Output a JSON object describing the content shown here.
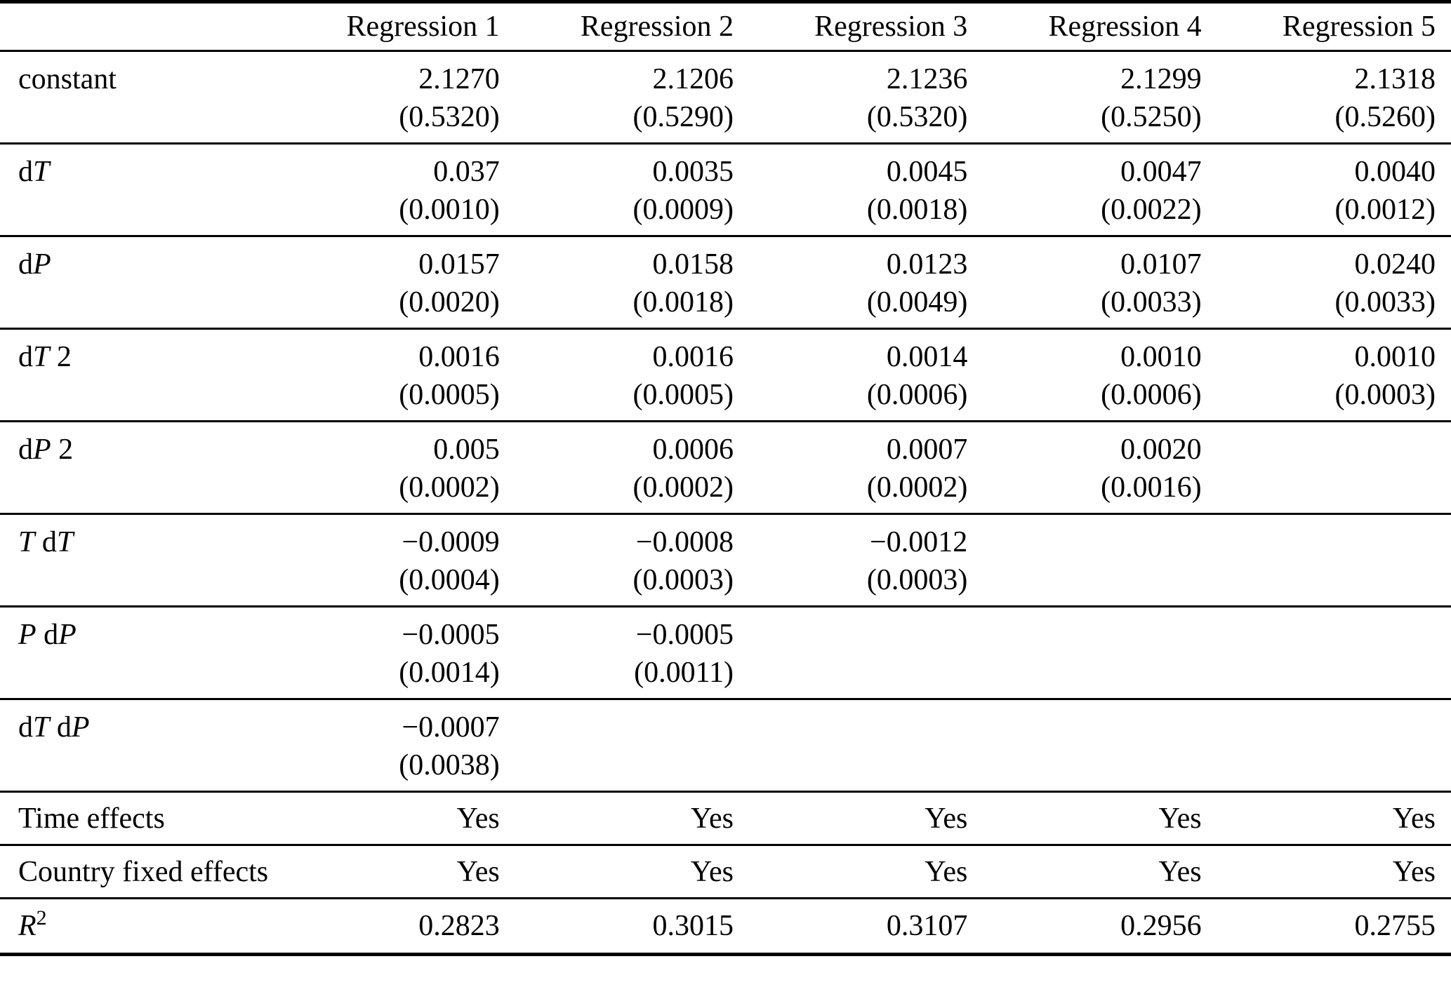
{
  "page": {
    "background_color": "#ffffff",
    "text_color": "#000000",
    "rule_color": "#000000"
  },
  "table": {
    "header": {
      "corner_label": "",
      "columns": [
        "Regression 1",
        "Regression 2",
        "Regression 3",
        "Regression 4",
        "Regression 5"
      ]
    },
    "coefficient_rows": [
      {
        "name": "constant",
        "label_parts": [
          {
            "text": "constant",
            "italic": false
          }
        ],
        "estimates": [
          "2.1270",
          "2.1206",
          "2.1236",
          "2.1299",
          "2.1318"
        ],
        "std_errors": [
          "(0.5320)",
          "(0.5290)",
          "(0.5320)",
          "(0.5250)",
          "(0.5260)"
        ]
      },
      {
        "name": "dT",
        "label_parts": [
          {
            "text": "d",
            "italic": false
          },
          {
            "text": "T",
            "italic": true
          }
        ],
        "estimates": [
          "0.037",
          "0.0035",
          "0.0045",
          "0.0047",
          "0.0040"
        ],
        "std_errors": [
          "(0.0010)",
          "(0.0009)",
          "(0.0018)",
          "(0.0022)",
          "(0.0012)"
        ]
      },
      {
        "name": "dP",
        "label_parts": [
          {
            "text": "d",
            "italic": false
          },
          {
            "text": "P",
            "italic": true
          }
        ],
        "estimates": [
          "0.0157",
          "0.0158",
          "0.0123",
          "0.0107",
          "0.0240"
        ],
        "std_errors": [
          "(0.0020)",
          "(0.0018)",
          "(0.0049)",
          "(0.0033)",
          "(0.0033)"
        ]
      },
      {
        "name": "dT2",
        "label_parts": [
          {
            "text": "d",
            "italic": false
          },
          {
            "text": "T",
            "italic": true
          },
          {
            "text": " 2",
            "italic": false
          }
        ],
        "estimates": [
          "0.0016",
          "0.0016",
          "0.0014",
          "0.0010",
          "0.0010"
        ],
        "std_errors": [
          "(0.0005)",
          "(0.0005)",
          "(0.0006)",
          "(0.0006)",
          "(0.0003)"
        ]
      },
      {
        "name": "dP2",
        "label_parts": [
          {
            "text": "d",
            "italic": false
          },
          {
            "text": "P",
            "italic": true
          },
          {
            "text": " 2",
            "italic": false
          }
        ],
        "estimates": [
          "0.005",
          "0.0006",
          "0.0007",
          "0.0020",
          ""
        ],
        "std_errors": [
          "(0.0002)",
          "(0.0002)",
          "(0.0002)",
          "(0.0016)",
          ""
        ]
      },
      {
        "name": "TdT",
        "label_parts": [
          {
            "text": "T",
            "italic": true
          },
          {
            "text": " d",
            "italic": false
          },
          {
            "text": "T",
            "italic": true
          }
        ],
        "estimates": [
          "−0.0009",
          "−0.0008",
          "−0.0012",
          "",
          ""
        ],
        "std_errors": [
          "(0.0004)",
          "(0.0003)",
          "(0.0003)",
          "",
          ""
        ]
      },
      {
        "name": "PdP",
        "label_parts": [
          {
            "text": "P",
            "italic": true
          },
          {
            "text": " d",
            "italic": false
          },
          {
            "text": "P",
            "italic": true
          }
        ],
        "estimates": [
          "−0.0005",
          "−0.0005",
          "",
          "",
          ""
        ],
        "std_errors": [
          "(0.0014)",
          "(0.0011)",
          "",
          "",
          ""
        ]
      },
      {
        "name": "dTdP",
        "label_parts": [
          {
            "text": "d",
            "italic": false
          },
          {
            "text": "T",
            "italic": true
          },
          {
            "text": " d",
            "italic": false
          },
          {
            "text": "P",
            "italic": true
          }
        ],
        "estimates": [
          "−0.0007",
          "",
          "",
          "",
          ""
        ],
        "std_errors": [
          "(0.0038)",
          "",
          "",
          "",
          ""
        ]
      }
    ],
    "effect_rows": [
      {
        "name": "time-effects",
        "label_parts": [
          {
            "text": "Time effects",
            "italic": false
          }
        ],
        "values": [
          "Yes",
          "Yes",
          "Yes",
          "Yes",
          "Yes"
        ]
      },
      {
        "name": "country-fixed-effects",
        "label_parts": [
          {
            "text": "Country fixed effects",
            "italic": false
          }
        ],
        "values": [
          "Yes",
          "Yes",
          "Yes",
          "Yes",
          "Yes"
        ]
      }
    ],
    "stat_rows": [
      {
        "name": "r-squared",
        "label_parts": [
          {
            "text": "R",
            "italic": true
          },
          {
            "text": "2",
            "italic": false,
            "superscript": true
          }
        ],
        "values": [
          "0.2823",
          "0.3015",
          "0.3107",
          "0.2956",
          "0.2755"
        ]
      }
    ]
  }
}
